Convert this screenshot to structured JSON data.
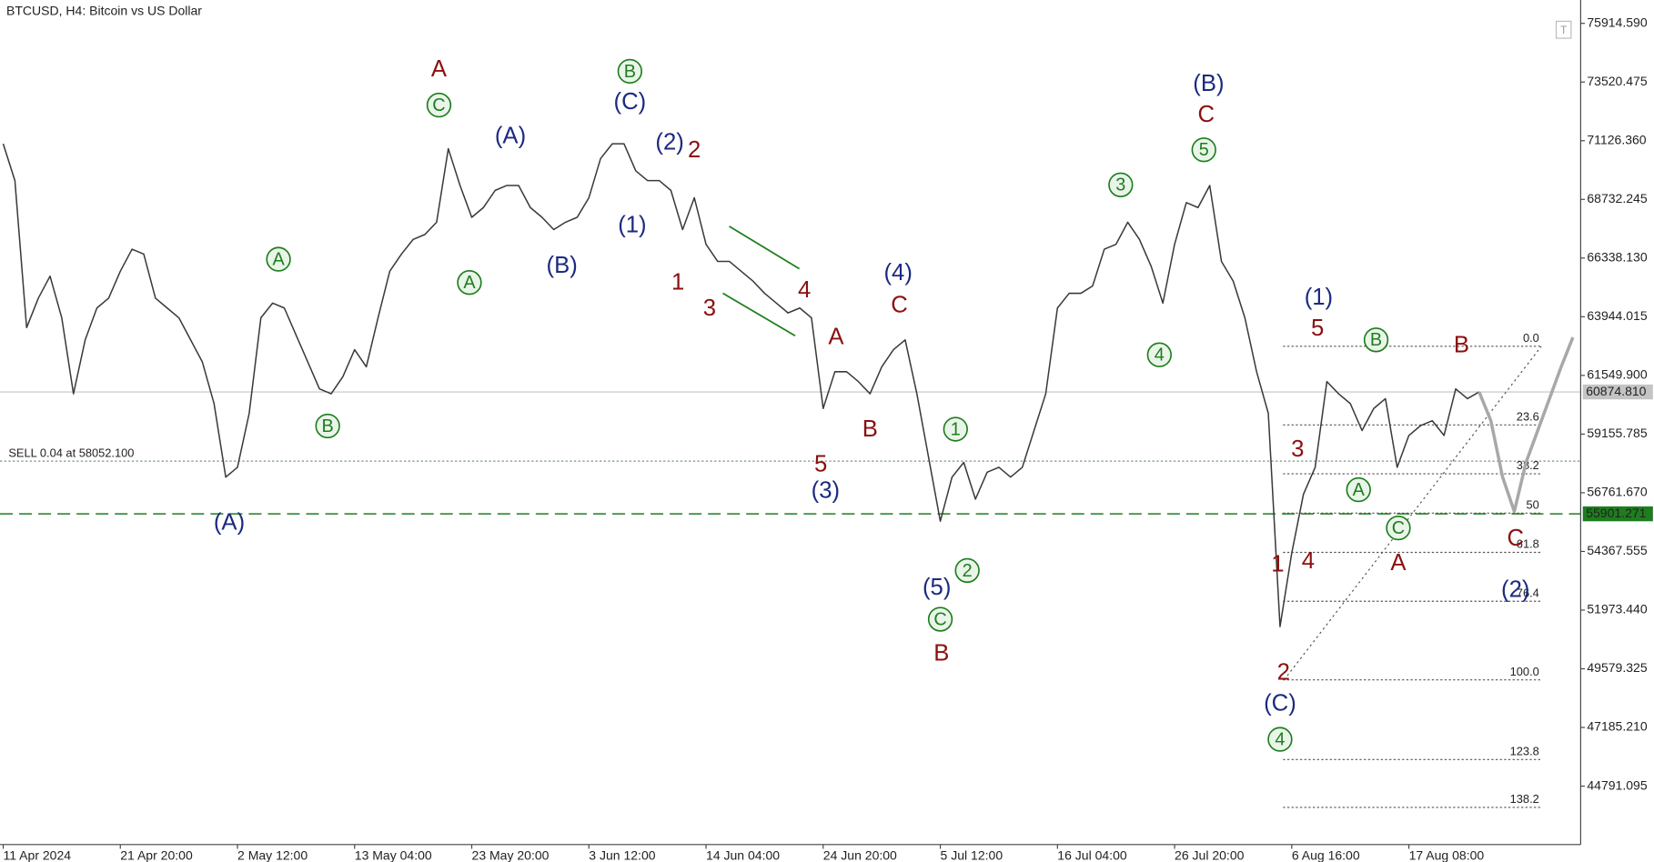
{
  "chart_data": {
    "type": "line",
    "title": "BTCUSD, H4:  Bitcoin vs US Dollar",
    "categories": [
      "11 Apr 2024",
      null,
      null,
      null,
      null,
      null,
      null,
      null,
      null,
      null,
      "21 Apr 20:00",
      null,
      null,
      null,
      null,
      null,
      null,
      null,
      null,
      null,
      "2 May 12:00",
      null,
      null,
      null,
      null,
      null,
      null,
      null,
      null,
      null,
      "13 May 04:00",
      null,
      null,
      null,
      null,
      null,
      null,
      null,
      null,
      null,
      "23 May 20:00",
      null,
      null,
      null,
      null,
      null,
      null,
      null,
      null,
      null,
      "3 Jun 12:00",
      null,
      null,
      null,
      null,
      null,
      null,
      null,
      null,
      null,
      "14 Jun 04:00",
      null,
      null,
      null,
      null,
      null,
      null,
      null,
      null,
      null,
      "24 Jun 20:00",
      null,
      null,
      null,
      null,
      null,
      null,
      null,
      null,
      null,
      "5 Jul 12:00",
      null,
      null,
      null,
      null,
      null,
      null,
      null,
      null,
      null,
      "16 Jul 04:00",
      null,
      null,
      null,
      null,
      null,
      null,
      null,
      null,
      null,
      "26 Jul 20:00",
      null,
      null,
      null,
      null,
      null,
      null,
      null,
      null,
      null,
      "6 Aug 16:00",
      null,
      null,
      null,
      null,
      null,
      null,
      null,
      null,
      null,
      "17 Aug 08:00",
      null,
      null,
      null,
      null,
      null,
      null,
      null,
      null,
      null,
      null,
      null,
      null,
      null,
      null
    ],
    "series": [
      {
        "color": "#3a3a3a",
        "values": [
          71000,
          69500,
          63500,
          64700,
          65600,
          63900,
          60800,
          63000,
          64300,
          64700,
          65800,
          66700,
          66500,
          64700,
          64300,
          63900,
          63000,
          62100,
          60400,
          57400,
          57800,
          60000,
          63900,
          64500,
          64300,
          63200,
          62100,
          61000,
          60800,
          61500,
          62600,
          61900,
          63900,
          65800,
          66500,
          67100,
          67300,
          67800,
          70800,
          69300,
          68000,
          68400,
          69100,
          69300,
          69300,
          68400,
          68000,
          67500,
          67800,
          68000,
          68800,
          70400,
          71000,
          71000,
          69900,
          69500,
          69500,
          69100,
          67500,
          68800,
          66900,
          66200,
          66200,
          65800,
          65400,
          64900,
          64500,
          64100,
          64300,
          63900,
          60200,
          61700,
          61700,
          61300,
          60800,
          61900,
          62600,
          63000,
          60800,
          58200,
          55600,
          57400,
          58000,
          56500,
          57600,
          57800,
          57400,
          57800,
          59300,
          60800,
          64300,
          64900,
          64900,
          65200,
          66700,
          66900,
          67800,
          67100,
          66000,
          64500,
          66900,
          68600,
          68400,
          69300,
          66200,
          65400,
          63900,
          61700,
          60000,
          51300,
          54300,
          56700,
          57800,
          61300,
          60800,
          60400,
          59300,
          60200,
          60600,
          57800,
          59100,
          59500,
          59700,
          59100,
          61000,
          60600,
          60875,
          null,
          null,
          null,
          null,
          null,
          null,
          null,
          null
        ]
      },
      {
        "color": "#a8a8a8",
        "values": [
          null,
          null,
          null,
          null,
          null,
          null,
          null,
          null,
          null,
          null,
          null,
          null,
          null,
          null,
          null,
          null,
          null,
          null,
          null,
          null,
          null,
          null,
          null,
          null,
          null,
          null,
          null,
          null,
          null,
          null,
          null,
          null,
          null,
          null,
          null,
          null,
          null,
          null,
          null,
          null,
          null,
          null,
          null,
          null,
          null,
          null,
          null,
          null,
          null,
          null,
          null,
          null,
          null,
          null,
          null,
          null,
          null,
          null,
          null,
          null,
          null,
          null,
          null,
          null,
          null,
          null,
          null,
          null,
          null,
          null,
          null,
          null,
          null,
          null,
          null,
          null,
          null,
          null,
          null,
          null,
          null,
          null,
          null,
          null,
          null,
          null,
          null,
          null,
          null,
          null,
          null,
          null,
          null,
          null,
          null,
          null,
          null,
          null,
          null,
          null,
          null,
          null,
          null,
          null,
          null,
          null,
          null,
          null,
          null,
          null,
          null,
          null,
          null,
          null,
          null,
          null,
          null,
          null,
          null,
          null,
          null,
          null,
          null,
          null,
          null,
          null,
          60875,
          59700,
          57400,
          56000,
          58000,
          59300,
          60600,
          61900,
          63100
        ]
      }
    ],
    "ylim": [
      42406,
      76868
    ],
    "yticks": [
      {
        "value": 75914.59,
        "label": "75914.590"
      },
      {
        "value": 73520.475,
        "label": "73520.475"
      },
      {
        "value": 71126.36,
        "label": "71126.360"
      },
      {
        "value": 68732.245,
        "label": "68732.245"
      },
      {
        "value": 66338.13,
        "label": "66338.130"
      },
      {
        "value": 63944.015,
        "label": "63944.015"
      },
      {
        "value": 61549.9,
        "label": "61549.900"
      },
      {
        "value": 59155.785,
        "label": "59155.785"
      },
      {
        "value": 56761.67,
        "label": "56761.670"
      },
      {
        "value": 54367.555,
        "label": "54367.555"
      },
      {
        "value": 51973.44,
        "label": "51973.440"
      },
      {
        "value": 49579.325,
        "label": "49579.325"
      },
      {
        "value": 47185.21,
        "label": "47185.210"
      },
      {
        "value": 44791.095,
        "label": "44791.095"
      }
    ],
    "current_price": {
      "value": 60874.81,
      "label": "60874.810",
      "color": "#c4c4c4"
    },
    "level_line": {
      "value": 55901.271,
      "label": "55901.271",
      "color": "#1e7d1e"
    },
    "sell_order": {
      "label": "SELL 0.04 at 58052.100",
      "value": 58052.1,
      "color": "#7a9a7a"
    },
    "fibonacci": {
      "color": "#555555",
      "levels": [
        {
          "value": 62738,
          "label": "0.0"
        },
        {
          "value": 59530,
          "label": "23.6"
        },
        {
          "value": 57536,
          "label": "38.2"
        },
        {
          "value": 55932,
          "label": "50"
        },
        {
          "value": 54328,
          "label": "61.8"
        },
        {
          "value": 52334,
          "label": "76.4"
        },
        {
          "value": 49127,
          "label": "100.0"
        },
        {
          "value": 45876,
          "label": "123.8"
        },
        {
          "value": 43925,
          "label": "138.2"
        }
      ]
    },
    "wave_colors": {
      "red": "#8b1010",
      "blue": "#1c2a80",
      "green": "#1e7d1e"
    },
    "annotations": [
      {
        "text": "A",
        "x": 37.2,
        "y": 74000,
        "color": "red"
      },
      {
        "text": "C",
        "x": 37.2,
        "y": 72580,
        "color": "green",
        "circled": true
      },
      {
        "text": "(A)",
        "x": 43.3,
        "y": 71276,
        "color": "blue"
      },
      {
        "text": "B",
        "x": 53.5,
        "y": 73960,
        "color": "green",
        "circled": true
      },
      {
        "text": "(C)",
        "x": 53.5,
        "y": 72660,
        "color": "blue"
      },
      {
        "text": "(2)",
        "x": 56.9,
        "y": 71016,
        "color": "blue"
      },
      {
        "text": "2",
        "x": 59,
        "y": 70700,
        "color": "red"
      },
      {
        "text": "(1)",
        "x": 53.7,
        "y": 67635,
        "color": "blue"
      },
      {
        "text": "1",
        "x": 57.6,
        "y": 65300,
        "color": "red"
      },
      {
        "text": "3",
        "x": 60.3,
        "y": 64250,
        "color": "red"
      },
      {
        "text": "4",
        "x": 68.4,
        "y": 64990,
        "color": "red"
      },
      {
        "text": "A",
        "x": 23.5,
        "y": 66290,
        "color": "green",
        "circled": true
      },
      {
        "text": "A",
        "x": 39.8,
        "y": 65340,
        "color": "green",
        "circled": true
      },
      {
        "text": "(B)",
        "x": 47.7,
        "y": 65990,
        "color": "blue"
      },
      {
        "text": "B",
        "x": 27.7,
        "y": 59485,
        "color": "green",
        "circled": true
      },
      {
        "text": "(A)",
        "x": 19.3,
        "y": 55500,
        "color": "blue"
      },
      {
        "text": "A",
        "x": 71.1,
        "y": 63080,
        "color": "red"
      },
      {
        "text": "C",
        "x": 76.5,
        "y": 64380,
        "color": "red"
      },
      {
        "text": "(4)",
        "x": 76.4,
        "y": 65690,
        "color": "blue"
      },
      {
        "text": "B",
        "x": 74,
        "y": 59310,
        "color": "red"
      },
      {
        "text": "5",
        "x": 69.8,
        "y": 57880,
        "color": "red"
      },
      {
        "text": "(3)",
        "x": 70.2,
        "y": 56800,
        "color": "blue"
      },
      {
        "text": "1",
        "x": 81.3,
        "y": 59355,
        "color": "green",
        "circled": true
      },
      {
        "text": "2",
        "x": 82.3,
        "y": 53590,
        "color": "green",
        "circled": true
      },
      {
        "text": "(5)",
        "x": 79.7,
        "y": 52850,
        "color": "blue"
      },
      {
        "text": "C",
        "x": 80,
        "y": 51600,
        "color": "green",
        "circled": true
      },
      {
        "text": "B",
        "x": 80.1,
        "y": 50165,
        "color": "red"
      },
      {
        "text": "3",
        "x": 95.4,
        "y": 69325,
        "color": "green",
        "circled": true
      },
      {
        "text": "4",
        "x": 98.7,
        "y": 62390,
        "color": "green",
        "circled": true
      },
      {
        "text": "(B)",
        "x": 102.9,
        "y": 73400,
        "color": "blue"
      },
      {
        "text": "C",
        "x": 102.7,
        "y": 72140,
        "color": "red"
      },
      {
        "text": "5",
        "x": 102.5,
        "y": 70755,
        "color": "green",
        "circled": true
      },
      {
        "text": "(1)",
        "x": 112.3,
        "y": 64690,
        "color": "blue"
      },
      {
        "text": "5",
        "x": 112.2,
        "y": 63430,
        "color": "red"
      },
      {
        "text": "B",
        "x": 117.2,
        "y": 63000,
        "color": "green",
        "circled": true
      },
      {
        "text": "B",
        "x": 124.5,
        "y": 62740,
        "color": "red"
      },
      {
        "text": "3",
        "x": 110.5,
        "y": 58490,
        "color": "red"
      },
      {
        "text": "A",
        "x": 115.7,
        "y": 56885,
        "color": "green",
        "circled": true
      },
      {
        "text": "C",
        "x": 119.1,
        "y": 55325,
        "color": "green",
        "circled": true
      },
      {
        "text": "A",
        "x": 119.1,
        "y": 53850,
        "color": "red"
      },
      {
        "text": "4",
        "x": 111.4,
        "y": 53935,
        "color": "red"
      },
      {
        "text": "1",
        "x": 108.8,
        "y": 53800,
        "color": "red"
      },
      {
        "text": "2",
        "x": 109.3,
        "y": 49380,
        "color": "red"
      },
      {
        "text": "(C)",
        "x": 109,
        "y": 48130,
        "color": "blue"
      },
      {
        "text": "4",
        "x": 109,
        "y": 46700,
        "color": "green",
        "circled": true
      },
      {
        "text": "C",
        "x": 129.1,
        "y": 54850,
        "color": "red"
      },
      {
        "text": "(2)",
        "x": 129.1,
        "y": 52770,
        "color": "blue"
      }
    ]
  }
}
